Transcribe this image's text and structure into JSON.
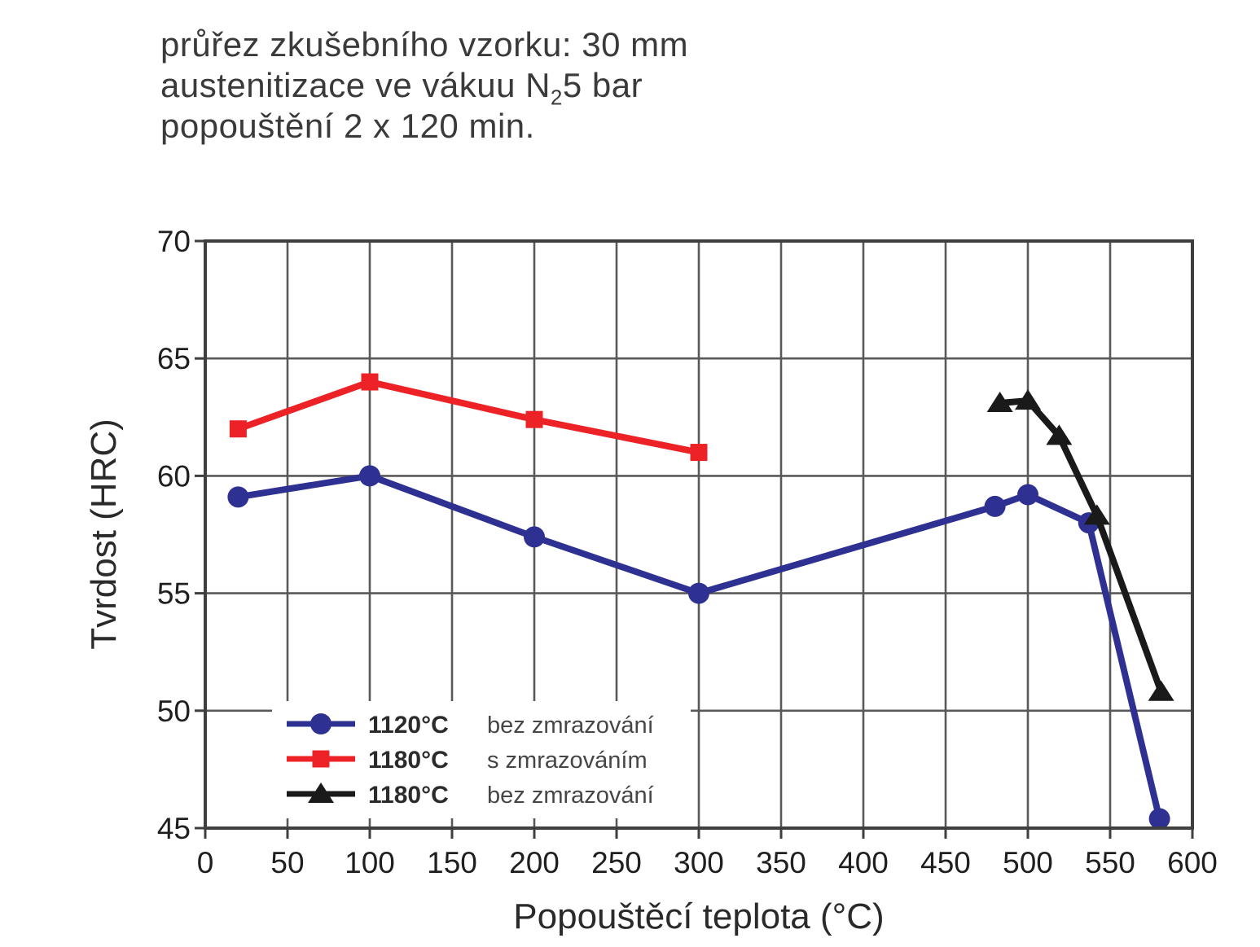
{
  "annotation": {
    "line1": "průřez zkušebního vzorku: 30 mm",
    "line2_pre": "austenitizace ve vákuu N",
    "line2_sub": "2",
    "line2_post": "5 bar",
    "line3": "popouštění 2 x 120 min."
  },
  "chart_data": {
    "type": "line",
    "title": "",
    "xlabel": "Popouštěcí teplota (°C)",
    "ylabel": "Tvrdost (HRC)",
    "xlim": [
      0,
      600
    ],
    "ylim": [
      45,
      70
    ],
    "xticks": [
      0,
      50,
      100,
      150,
      200,
      250,
      300,
      350,
      400,
      450,
      500,
      550,
      600
    ],
    "yticks": [
      45,
      50,
      55,
      60,
      65,
      70
    ],
    "grid": true,
    "legend_position": "inside-bottom-left",
    "colors": {
      "grid": "#595959",
      "border": "#3f3f3f",
      "tick_text": "#1f1f1f",
      "axis_title_text": "#2a2a2a",
      "legend_temp_text": "#2b2b2b",
      "legend_desc_text": "#464646",
      "background": "#ffffff"
    },
    "series": [
      {
        "name": "1120°C",
        "description": "bez zmrazování",
        "color": "#2e3192",
        "marker": "circle",
        "points": [
          [
            20,
            59.1
          ],
          [
            100,
            60.0
          ],
          [
            200,
            57.4
          ],
          [
            300,
            55.0
          ],
          [
            480,
            58.7
          ],
          [
            500,
            59.2
          ],
          [
            537,
            58.0
          ],
          [
            580,
            45.4
          ]
        ]
      },
      {
        "name": "1180°C",
        "description": "s zmrazováním",
        "color": "#ec2227",
        "marker": "square",
        "points": [
          [
            20,
            62.0
          ],
          [
            100,
            64.0
          ],
          [
            200,
            62.4
          ],
          [
            300,
            61.0
          ]
        ]
      },
      {
        "name": "1180°C",
        "description": "bez zmrazování",
        "color": "#1a1a1a",
        "marker": "triangle",
        "points": [
          [
            483,
            63.1
          ],
          [
            500,
            63.2
          ],
          [
            519,
            61.7
          ],
          [
            542,
            58.3
          ],
          [
            581,
            50.8
          ]
        ]
      }
    ]
  }
}
